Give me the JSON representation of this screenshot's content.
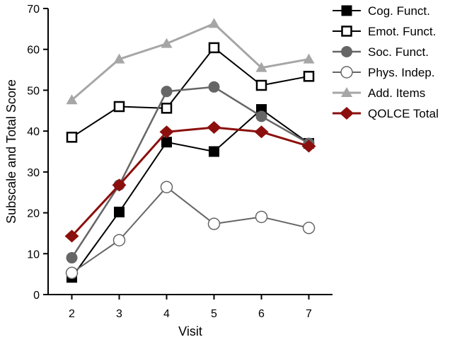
{
  "chart_data": {
    "type": "line",
    "title": "",
    "xlabel": "Visit",
    "ylabel": "Subscale and Total Score",
    "x": [
      2,
      3,
      4,
      5,
      6,
      7
    ],
    "x_ticks": [
      "2",
      "3",
      "4",
      "5",
      "6",
      "7"
    ],
    "y_ticks": [
      "0",
      "10",
      "20",
      "30",
      "40",
      "50",
      "60",
      "70"
    ],
    "ylim": [
      0,
      70
    ],
    "xlim": [
      1.5,
      7.5
    ],
    "grid": false,
    "legend_position": "top-right",
    "series": [
      {
        "name": "Cog. Funct.",
        "marker": "square-filled",
        "color": "#000000",
        "line_width": 2,
        "values": [
          4.2,
          20.2,
          37.3,
          35.0,
          45.3,
          37.0
        ]
      },
      {
        "name": "Emot. Funct.",
        "marker": "square-open",
        "color": "#000000",
        "line_width": 2,
        "values": [
          38.5,
          46.0,
          45.6,
          60.4,
          51.2,
          53.4
        ]
      },
      {
        "name": "Soc. Funct.",
        "marker": "circle-filled",
        "color": "#666666",
        "line_width": 2.5,
        "values": [
          9.0,
          26.8,
          49.7,
          50.8,
          43.6,
          37.0
        ]
      },
      {
        "name": "Phys. Indep.",
        "marker": "circle-open",
        "color": "#666666",
        "line_width": 2,
        "values": [
          5.3,
          13.3,
          26.3,
          17.3,
          19.0,
          16.3
        ]
      },
      {
        "name": "Add. Items",
        "marker": "triangle-filled",
        "color": "#a6a6a6",
        "line_width": 3,
        "values": [
          47.6,
          57.6,
          61.4,
          66.3,
          55.5,
          57.6
        ]
      },
      {
        "name": "QOLCE Total",
        "marker": "diamond-filled",
        "color": "#8b0f0c",
        "line_width": 3,
        "values": [
          14.3,
          26.8,
          39.8,
          40.9,
          39.8,
          36.3
        ]
      }
    ]
  }
}
